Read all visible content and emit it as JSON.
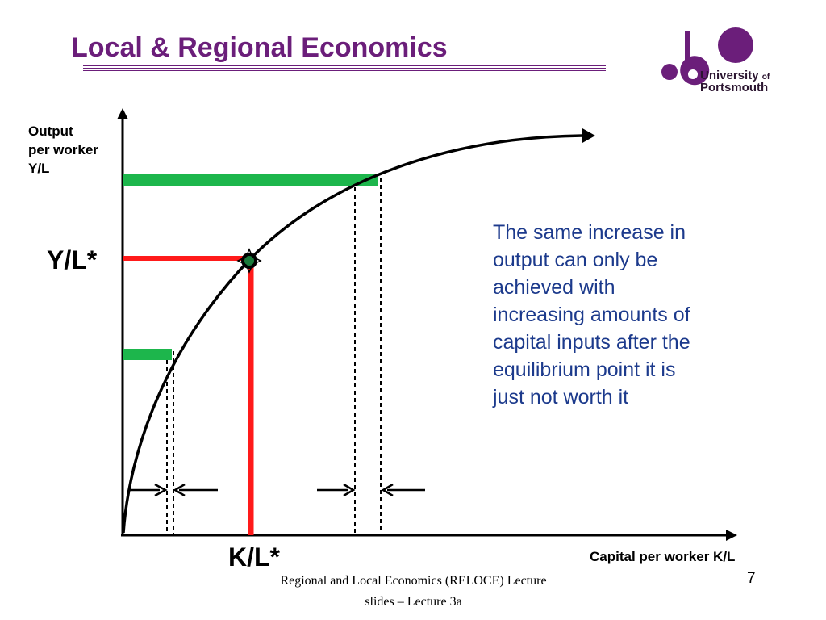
{
  "slide": {
    "title": "Local & Regional Economics",
    "page_number": "7"
  },
  "logo": {
    "line1": "University",
    "of": "of",
    "line2": "Portsmouth",
    "color": "#6b1e7a"
  },
  "diagram": {
    "y_axis_label_lines": [
      "Output",
      "per worker",
      "Y/L"
    ],
    "x_axis_label": "Capital per worker K/L",
    "y_star_label": "Y/L*",
    "x_star_label": "K/L*",
    "annotation_lines": [
      "The same increase in",
      "output can only be",
      "achieved with",
      "increasing amounts of",
      "capital inputs after the",
      "equilibrium point it is",
      "just not worth it"
    ],
    "colors": {
      "curve": "#000000",
      "green_bars": "#1db64c",
      "red_lines": "#ff1a1a",
      "equilibrium_marker": "#1a7a3a",
      "annotation_text": "#1c3a8c"
    }
  },
  "footer": {
    "lines": [
      "Regional and Local Economics (RELOCE) Lecture",
      "slides – Lecture 3a"
    ]
  }
}
